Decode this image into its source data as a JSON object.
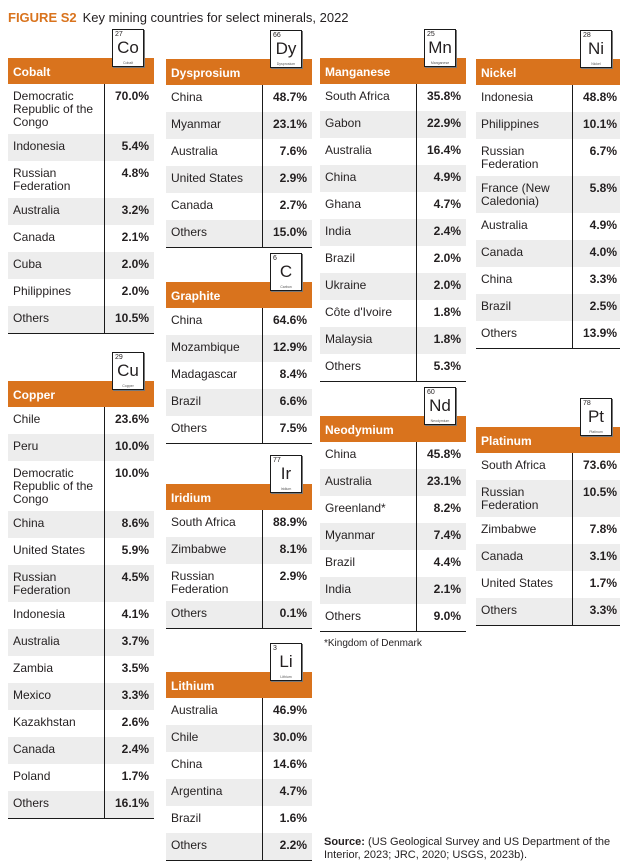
{
  "figure": {
    "label": "FIGURE S2",
    "title": "Key mining countries for select minerals, 2022"
  },
  "tables": [
    {
      "name": "Cobalt",
      "element": {
        "number": "27",
        "symbol": "Co",
        "name": "Cobalt"
      },
      "rows": [
        {
          "country": "Democratic Republic of the Congo",
          "share": "70.0%"
        },
        {
          "country": "Indonesia",
          "share": "5.4%"
        },
        {
          "country": "Russian Federation",
          "share": "4.8%"
        },
        {
          "country": "Australia",
          "share": "3.2%"
        },
        {
          "country": "Canada",
          "share": "2.1%"
        },
        {
          "country": "Cuba",
          "share": "2.0%"
        },
        {
          "country": "Philippines",
          "share": "2.0%"
        },
        {
          "country": "Others",
          "share": "10.5%"
        }
      ]
    },
    {
      "name": "Copper",
      "element": {
        "number": "29",
        "symbol": "Cu",
        "name": "Copper"
      },
      "rows": [
        {
          "country": "Chile",
          "share": "23.6%"
        },
        {
          "country": "Peru",
          "share": "10.0%"
        },
        {
          "country": "Democratic Republic of the Congo",
          "share": "10.0%"
        },
        {
          "country": "China",
          "share": "8.6%"
        },
        {
          "country": "United States",
          "share": "5.9%"
        },
        {
          "country": "Russian Federation",
          "share": "4.5%"
        },
        {
          "country": "Indonesia",
          "share": "4.1%"
        },
        {
          "country": "Australia",
          "share": "3.7%"
        },
        {
          "country": "Zambia",
          "share": "3.5%"
        },
        {
          "country": "Mexico",
          "share": "3.3%"
        },
        {
          "country": "Kazakhstan",
          "share": "2.6%"
        },
        {
          "country": "Canada",
          "share": "2.4%"
        },
        {
          "country": "Poland",
          "share": "1.7%"
        },
        {
          "country": "Others",
          "share": "16.1%"
        }
      ]
    },
    {
      "name": "Dysprosium",
      "element": {
        "number": "66",
        "symbol": "Dy",
        "name": "Dysprosium"
      },
      "rows": [
        {
          "country": "China",
          "share": "48.7%"
        },
        {
          "country": "Myanmar",
          "share": "23.1%"
        },
        {
          "country": "Australia",
          "share": "7.6%"
        },
        {
          "country": "United States",
          "share": "2.9%"
        },
        {
          "country": "Canada",
          "share": "2.7%"
        },
        {
          "country": "Others",
          "share": "15.0%"
        }
      ]
    },
    {
      "name": "Graphite",
      "element": {
        "number": "6",
        "symbol": "C",
        "name": "Carbon"
      },
      "rows": [
        {
          "country": "China",
          "share": "64.6%"
        },
        {
          "country": "Mozambique",
          "share": "12.9%"
        },
        {
          "country": "Madagascar",
          "share": "8.4%"
        },
        {
          "country": "Brazil",
          "share": "6.6%"
        },
        {
          "country": "Others",
          "share": "7.5%"
        }
      ]
    },
    {
      "name": "Iridium",
      "element": {
        "number": "77",
        "symbol": "Ir",
        "name": "Iridium"
      },
      "rows": [
        {
          "country": "South Africa",
          "share": "88.9%"
        },
        {
          "country": "Zimbabwe",
          "share": "8.1%"
        },
        {
          "country": "Russian Federation",
          "share": "2.9%"
        },
        {
          "country": "Others",
          "share": "0.1%"
        }
      ]
    },
    {
      "name": "Lithium",
      "element": {
        "number": "3",
        "symbol": "Li",
        "name": "Lithium"
      },
      "rows": [
        {
          "country": "Australia",
          "share": "46.9%"
        },
        {
          "country": "Chile",
          "share": "30.0%"
        },
        {
          "country": "China",
          "share": "14.6%"
        },
        {
          "country": "Argentina",
          "share": "4.7%"
        },
        {
          "country": "Brazil",
          "share": "1.6%"
        },
        {
          "country": "Others",
          "share": "2.2%"
        }
      ]
    },
    {
      "name": "Manganese",
      "element": {
        "number": "25",
        "symbol": "Mn",
        "name": "Manganese"
      },
      "rows": [
        {
          "country": "South Africa",
          "share": "35.8%"
        },
        {
          "country": "Gabon",
          "share": "22.9%"
        },
        {
          "country": "Australia",
          "share": "16.4%"
        },
        {
          "country": "China",
          "share": "4.9%"
        },
        {
          "country": "Ghana",
          "share": "4.7%"
        },
        {
          "country": "India",
          "share": "2.4%"
        },
        {
          "country": "Brazil",
          "share": "2.0%"
        },
        {
          "country": "Ukraine",
          "share": "2.0%"
        },
        {
          "country": "Côte d'Ivoire",
          "share": "1.8%"
        },
        {
          "country": "Malaysia",
          "share": "1.8%"
        },
        {
          "country": "Others",
          "share": "5.3%"
        }
      ]
    },
    {
      "name": "Neodymium",
      "element": {
        "number": "60",
        "symbol": "Nd",
        "name": "Neodymium"
      },
      "rows": [
        {
          "country": "China",
          "share": "45.8%"
        },
        {
          "country": "Australia",
          "share": "23.1%"
        },
        {
          "country": "Greenland*",
          "share": "8.2%"
        },
        {
          "country": "Myanmar",
          "share": "7.4%"
        },
        {
          "country": "Brazil",
          "share": "4.4%"
        },
        {
          "country": "India",
          "share": "2.1%"
        },
        {
          "country": "Others",
          "share": "9.0%"
        }
      ]
    },
    {
      "name": "Nickel",
      "element": {
        "number": "28",
        "symbol": "Ni",
        "name": "Nickel"
      },
      "rows": [
        {
          "country": "Indonesia",
          "share": "48.8%"
        },
        {
          "country": "Philippines",
          "share": "10.1%"
        },
        {
          "country": "Russian Federation",
          "share": "6.7%"
        },
        {
          "country": "France (New Caledonia)",
          "share": "5.8%"
        },
        {
          "country": "Australia",
          "share": "4.9%"
        },
        {
          "country": "Canada",
          "share": "4.0%"
        },
        {
          "country": "China",
          "share": "3.3%"
        },
        {
          "country": "Brazil",
          "share": "2.5%"
        },
        {
          "country": "Others",
          "share": "13.9%"
        }
      ]
    },
    {
      "name": "Platinum",
      "element": {
        "number": "78",
        "symbol": "Pt",
        "name": "Platinum"
      },
      "rows": [
        {
          "country": "South Africa",
          "share": "73.6%"
        },
        {
          "country": "Russian Federation",
          "share": "10.5%"
        },
        {
          "country": "Zimbabwe",
          "share": "7.8%"
        },
        {
          "country": "Canada",
          "share": "3.1%"
        },
        {
          "country": "United States",
          "share": "1.7%"
        },
        {
          "country": "Others",
          "share": "3.3%"
        }
      ]
    }
  ],
  "note": "*Kingdom of Denmark",
  "source": {
    "label": "Source:",
    "text": "(US Geological Survey and US Department of the Interior, 2023; JRC, 2020; USGS, 2023b)."
  }
}
